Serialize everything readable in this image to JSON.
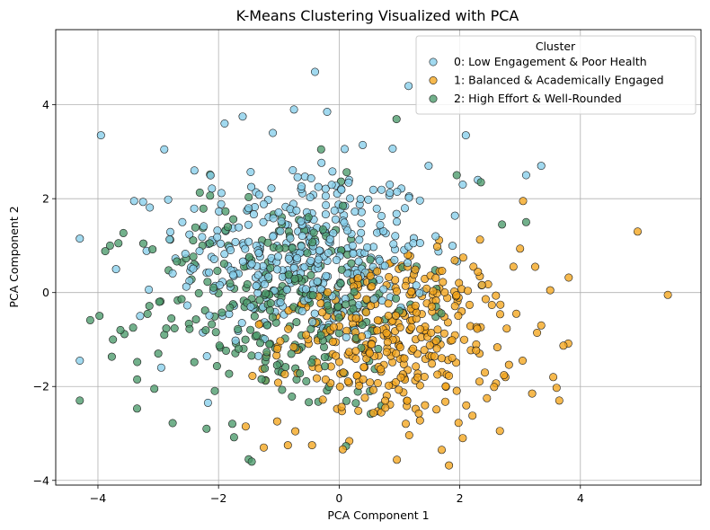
{
  "chart_data": {
    "type": "scatter",
    "title": "K-Means Clustering Visualized with PCA",
    "xlabel": "PCA Component 1",
    "ylabel": "PCA Component 2",
    "xlim": [
      -4.7,
      6.0
    ],
    "ylim": [
      -4.1,
      5.6
    ],
    "xticks": [
      -4,
      -2,
      0,
      2,
      4
    ],
    "yticks": [
      -4,
      -2,
      0,
      2,
      4
    ],
    "grid": true,
    "legend": {
      "title": "Cluster",
      "placement": "top-right"
    },
    "series": [
      {
        "name": "0: Low Engagement & Poor Health",
        "color": "#87ceeb",
        "center": [
          -0.55,
          0.85
        ],
        "spread": [
          1.05,
          0.95
        ],
        "count": 380,
        "points": [
          [
            -3.95,
            3.35
          ],
          [
            -4.3,
            1.15
          ],
          [
            -4.3,
            -1.45
          ],
          [
            -0.4,
            4.7
          ],
          [
            -0.75,
            3.9
          ],
          [
            -1.6,
            3.75
          ],
          [
            -2.9,
            3.05
          ],
          [
            -1.1,
            3.4
          ],
          [
            -0.2,
            3.85
          ],
          [
            1.15,
            4.4
          ],
          [
            2.1,
            3.35
          ],
          [
            3.35,
            2.7
          ],
          [
            3.1,
            2.5
          ],
          [
            -3.4,
            1.95
          ],
          [
            -3.7,
            0.5
          ],
          [
            -3.3,
            -0.5
          ],
          [
            -2.95,
            -1.6
          ],
          [
            -2.6,
            1.5
          ],
          [
            2.05,
            2.3
          ],
          [
            2.3,
            2.4
          ],
          [
            1.6,
            1.2
          ],
          [
            -2.4,
            2.6
          ],
          [
            -1.9,
            3.6
          ]
        ]
      },
      {
        "name": "1: Balanced & Academically Engaged",
        "color": "#f4a51c",
        "center": [
          0.95,
          -0.95
        ],
        "spread": [
          0.95,
          0.95
        ],
        "count": 370,
        "points": [
          [
            4.95,
            1.3
          ],
          [
            5.45,
            -0.05
          ],
          [
            3.5,
            0.05
          ],
          [
            3.65,
            -2.3
          ],
          [
            3.55,
            -1.8
          ],
          [
            3.2,
            -2.15
          ],
          [
            3.05,
            1.95
          ],
          [
            3.25,
            0.55
          ],
          [
            1.7,
            -3.35
          ],
          [
            2.05,
            -3.1
          ],
          [
            -0.45,
            -3.25
          ],
          [
            -1.25,
            -3.3
          ],
          [
            -0.85,
            -3.25
          ],
          [
            -1.55,
            -2.85
          ],
          [
            2.45,
            -2.25
          ],
          [
            3.35,
            -0.7
          ]
        ]
      },
      {
        "name": "2: High Effort & Well-Rounded",
        "color": "#4a9a6a",
        "center": [
          -0.95,
          -0.25
        ],
        "spread": [
          1.15,
          1.15
        ],
        "count": 300,
        "points": [
          [
            -4.3,
            -2.3
          ],
          [
            -3.8,
            1.0
          ],
          [
            -3.75,
            -1.0
          ],
          [
            -3.35,
            -1.85
          ],
          [
            -2.2,
            -2.9
          ],
          [
            -1.45,
            -3.6
          ],
          [
            -1.5,
            -3.55
          ],
          [
            3.1,
            1.5
          ],
          [
            2.35,
            2.35
          ],
          [
            1.95,
            2.5
          ],
          [
            -0.3,
            3.05
          ],
          [
            2.7,
            1.45
          ],
          [
            -2.9,
            -0.9
          ],
          [
            -3.0,
            -1.3
          ]
        ]
      }
    ]
  }
}
